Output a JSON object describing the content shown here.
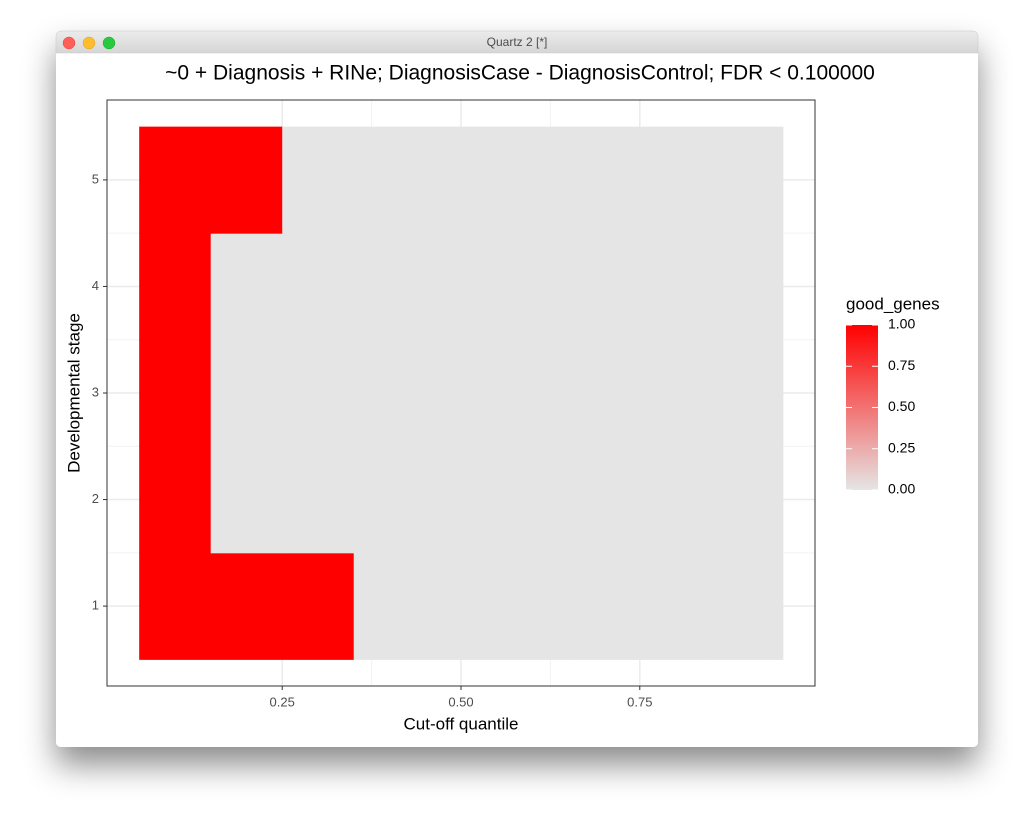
{
  "window_title": "Quartz 2 [*]",
  "chart_data": {
    "type": "heatmap",
    "title": "~0 + Diagnosis + RINe; DiagnosisCase - DiagnosisControl; FDR < 0.100000",
    "x_label": "Cut-off quantile",
    "y_label": "Developmental stage",
    "x": [
      0.1,
      0.2,
      0.3,
      0.4,
      0.5,
      0.6,
      0.7,
      0.8,
      0.9
    ],
    "y": [
      1,
      2,
      3,
      4,
      5
    ],
    "values": [
      [
        1,
        1,
        1,
        0,
        0,
        0,
        0,
        0,
        0
      ],
      [
        1,
        0,
        0,
        0,
        0,
        0,
        0,
        0,
        0
      ],
      [
        1,
        0,
        0,
        0,
        0,
        0,
        0,
        0,
        0
      ],
      [
        1,
        0,
        0,
        0,
        0,
        0,
        0,
        0,
        0
      ],
      [
        1,
        1,
        0,
        0,
        0,
        0,
        0,
        0,
        0
      ]
    ],
    "xlim": [
      0.005,
      0.995
    ],
    "ylim": [
      0.25,
      5.75
    ],
    "xticks": [
      0.25,
      {
        "value": 0.5,
        "label": "0.50"
      },
      0.75
    ],
    "yticks": [
      1,
      2,
      3,
      4,
      5
    ],
    "grid": true,
    "colorbar": {
      "title": "good_genes",
      "low": "#e5e5e5",
      "high": "#ff0000",
      "ticks": [
        {
          "value": 0,
          "label": "0.00"
        },
        0.25,
        {
          "value": 0.5,
          "label": "0.50"
        },
        0.75,
        {
          "value": 1,
          "label": "1.00"
        }
      ]
    }
  }
}
